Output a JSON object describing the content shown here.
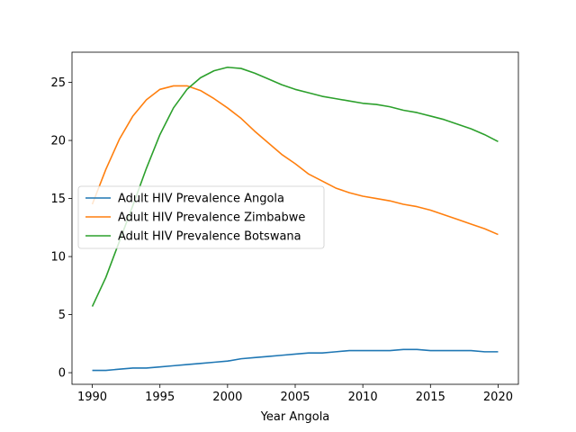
{
  "chart_data": {
    "type": "line",
    "title": "",
    "xlabel": "Year Angola",
    "ylabel": "",
    "xlim": [
      1988.5,
      2021.5
    ],
    "ylim": [
      -1.0,
      27.6
    ],
    "xticks": [
      1990,
      1995,
      2000,
      2005,
      2010,
      2015,
      2020
    ],
    "yticks": [
      0,
      5,
      10,
      15,
      20,
      25
    ],
    "grid": false,
    "legend_position": "center-left",
    "x": [
      1990,
      1991,
      1992,
      1993,
      1994,
      1995,
      1996,
      1997,
      1998,
      1999,
      2000,
      2001,
      2002,
      2003,
      2004,
      2005,
      2006,
      2007,
      2008,
      2009,
      2010,
      2011,
      2012,
      2013,
      2014,
      2015,
      2016,
      2017,
      2018,
      2019,
      2020
    ],
    "series": [
      {
        "name": "Adult HIV Prevalence Angola",
        "color": "#1f77b4",
        "values": [
          0.2,
          0.2,
          0.3,
          0.4,
          0.4,
          0.5,
          0.6,
          0.7,
          0.8,
          0.9,
          1.0,
          1.2,
          1.3,
          1.4,
          1.5,
          1.6,
          1.7,
          1.7,
          1.8,
          1.9,
          1.9,
          1.9,
          1.9,
          2.0,
          2.0,
          1.9,
          1.9,
          1.9,
          1.9,
          1.8,
          1.8
        ]
      },
      {
        "name": "Adult HIV Prevalence Zimbabwe",
        "color": "#ff7f0e",
        "values": [
          14.5,
          17.5,
          20.1,
          22.1,
          23.5,
          24.4,
          24.7,
          24.7,
          24.3,
          23.6,
          22.8,
          21.9,
          20.8,
          19.8,
          18.8,
          18.0,
          17.1,
          16.5,
          15.9,
          15.5,
          15.2,
          15.0,
          14.8,
          14.5,
          14.3,
          14.0,
          13.6,
          13.2,
          12.8,
          12.4,
          11.9
        ]
      },
      {
        "name": "Adult HIV Prevalence Botswana",
        "color": "#2ca02c",
        "values": [
          5.7,
          8.2,
          11.3,
          14.4,
          17.6,
          20.5,
          22.8,
          24.4,
          25.4,
          26.0,
          26.3,
          26.2,
          25.8,
          25.3,
          24.8,
          24.4,
          24.1,
          23.8,
          23.6,
          23.4,
          23.2,
          23.1,
          22.9,
          22.6,
          22.4,
          22.1,
          21.8,
          21.4,
          21.0,
          20.5,
          19.9
        ]
      }
    ]
  }
}
